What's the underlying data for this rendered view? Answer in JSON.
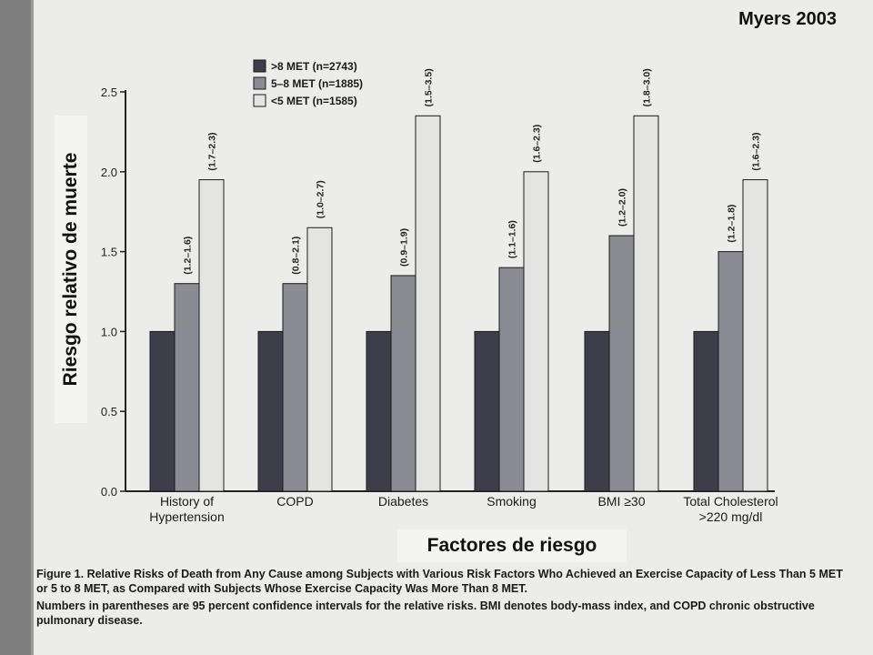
{
  "header": {
    "citation": "Myers 2003"
  },
  "axis_overlay": {
    "ylabel": "Riesgo relativo de muerte",
    "xlabel": "Factores de riesgo"
  },
  "caption": {
    "figure_label": "Figure 1.",
    "title": "Relative Risks of Death from Any Cause among Subjects with Various Risk Factors Who Achieved an Exercise Capacity of Less Than 5 MET or 5 to 8 MET, as Compared with Subjects Whose Exercise Capacity Was More Than 8 MET.",
    "note": "Numbers in parentheses are 95 percent confidence intervals for the relative risks. BMI denotes body-mass index, and COPD chronic obstructive pulmonary disease."
  },
  "colors": {
    "series_1": "#3d3e4a",
    "series_2": "#8a8b93",
    "series_3": "#e4e4e2",
    "bar_stroke": "#1a1a1a",
    "axis": "#222222"
  },
  "chart_data": {
    "type": "bar",
    "categories": [
      "History of\nHypertension",
      "COPD",
      "Diabetes",
      "Smoking",
      "BMI ≥30",
      "Total Cholesterol\n>220 mg/dl"
    ],
    "series": [
      {
        "name": ">8 MET (n=2743)",
        "values": [
          1.0,
          1.0,
          1.0,
          1.0,
          1.0,
          1.0
        ],
        "ci": [
          "",
          "",
          "",
          "",
          "",
          ""
        ]
      },
      {
        "name": "5–8 MET (n=1885)",
        "values": [
          1.3,
          1.3,
          1.35,
          1.4,
          1.6,
          1.5
        ],
        "ci": [
          "(1.2–1.6)",
          "(0.8–2.1)",
          "(0.9–1.9)",
          "(1.1–1.6)",
          "(1.2–2.0)",
          "(1.2–1.8)"
        ]
      },
      {
        "name": "<5 MET (n=1585)",
        "values": [
          1.95,
          1.65,
          2.35,
          2.0,
          2.35,
          1.95
        ],
        "ci": [
          "(1.7–2.3)",
          "(1.0–2.7)",
          "(1.5–3.5)",
          "(1.6–2.3)",
          "(1.8–3.0)",
          "(1.6–2.3)"
        ]
      }
    ],
    "ylim": [
      0,
      2.5
    ],
    "yticks": [
      "0.0",
      "0.5",
      "1.0",
      "1.5",
      "2.0",
      "2.5"
    ],
    "xlabel": "",
    "ylabel": "",
    "legend_position": "top-center",
    "grid": false
  }
}
